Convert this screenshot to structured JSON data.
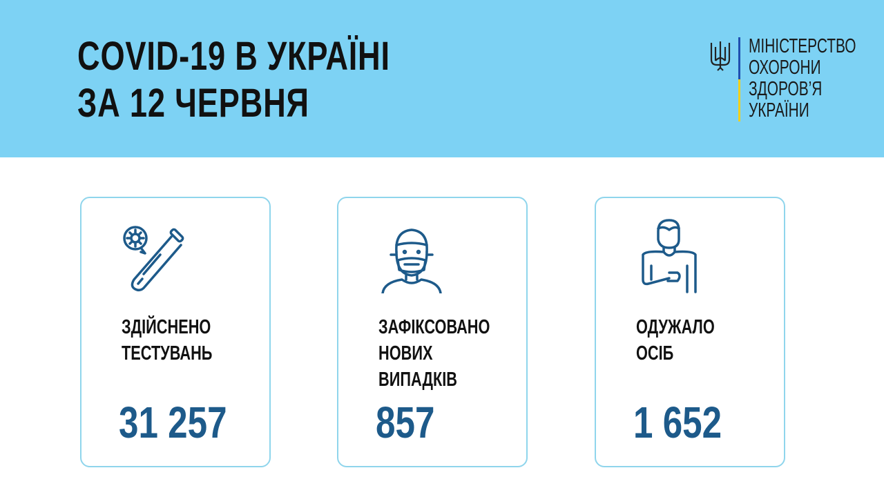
{
  "header": {
    "title_line1": "COVID-19 В УКРАЇНІ",
    "title_line2": "ЗА 12 ЧЕРВНЯ",
    "ministry": [
      "МІНІСТЕРСТВО",
      "ОХОРОНИ",
      "ЗДОРОВ’Я",
      "УКРАЇНИ"
    ]
  },
  "colors": {
    "header_bg": "#7dd2f4",
    "value_color": "#1d5a8a",
    "card_border": "#8fd5ec",
    "icon_color": "#1d5a8a"
  },
  "cards": [
    {
      "icon": "test-tube-virus-icon",
      "label": [
        "ЗДІЙСНЕНО",
        "ТЕСТУВАНЬ"
      ],
      "value": "31 257"
    },
    {
      "icon": "masked-person-icon",
      "label": [
        "ЗАФІКСОВАНО",
        "НОВИХ",
        "ВИПАДКІВ"
      ],
      "value": "857"
    },
    {
      "icon": "recovered-person-icon",
      "label": [
        "ОДУЖАЛО",
        "ОСІБ"
      ],
      "value": "1 652"
    }
  ]
}
